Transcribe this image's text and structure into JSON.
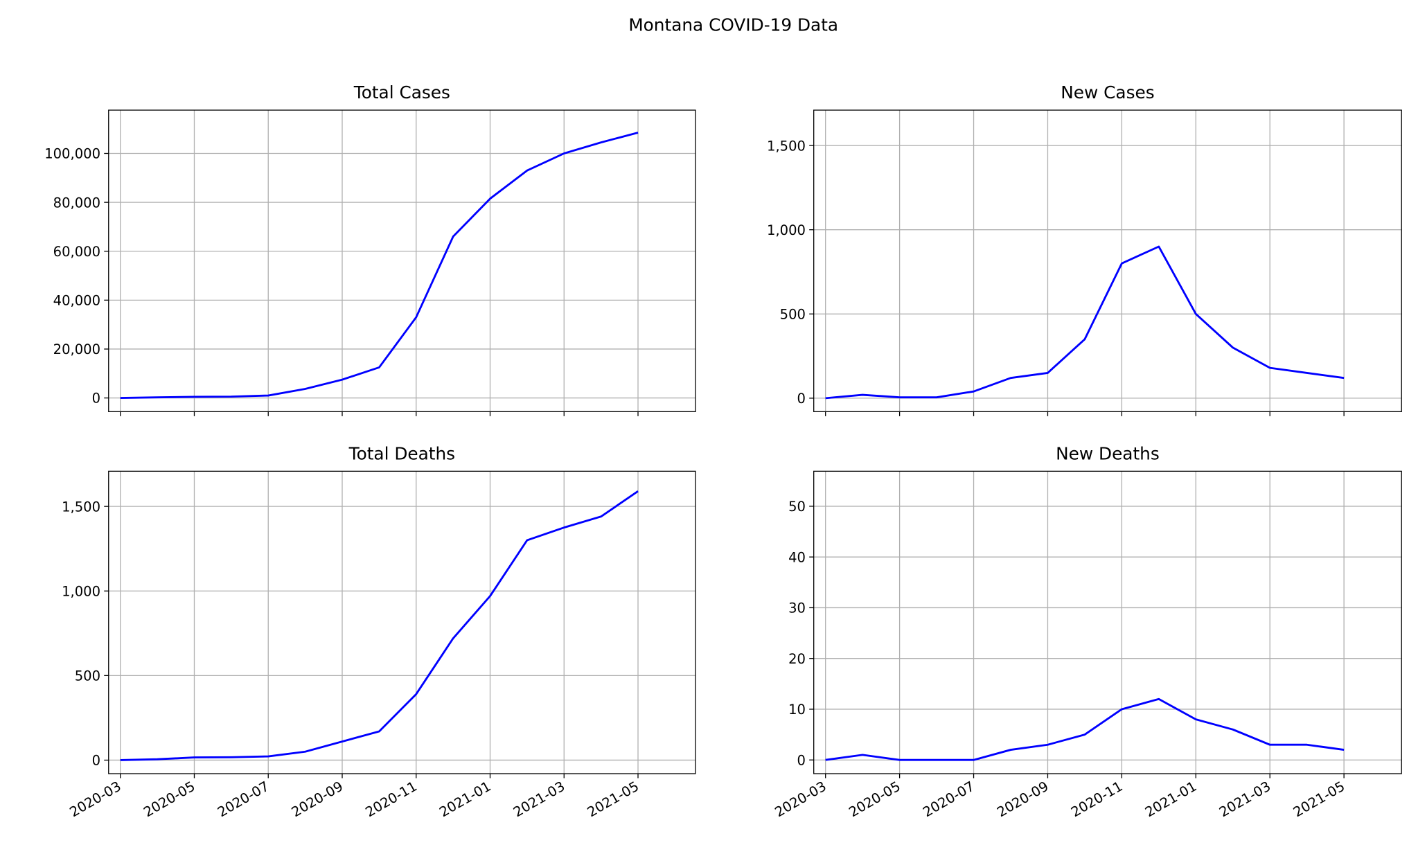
{
  "title": "Montana COVID-19 Data",
  "chart_data": [
    {
      "type": "line",
      "title": "Total Cases",
      "grid": true,
      "show_xtick_labels": false,
      "x": [
        "2020-03",
        "2020-04",
        "2020-05",
        "2020-06",
        "2020-07",
        "2020-08",
        "2020-09",
        "2020-10",
        "2020-11",
        "2020-12",
        "2021-01",
        "2021-02",
        "2021-03",
        "2021-04",
        "2021-05"
      ],
      "series": [
        {
          "name": "Total Cases",
          "color": "#0000ff",
          "values": [
            0,
            250,
            450,
            550,
            1000,
            3700,
            7500,
            12500,
            33000,
            66000,
            81500,
            93000,
            100000,
            104500,
            108500
          ]
        }
      ],
      "xticks": [
        "2020-03",
        "2020-05",
        "2020-07",
        "2020-09",
        "2020-11",
        "2021-01",
        "2021-03",
        "2021-05"
      ],
      "ylim": [
        -5600,
        117700
      ],
      "yticks": [
        0,
        {
          "value": 20000,
          "label": "20,000"
        },
        {
          "value": 40000,
          "label": "40,000"
        },
        {
          "value": 60000,
          "label": "60,000"
        },
        {
          "value": 80000,
          "label": "80,000"
        },
        {
          "value": 100000,
          "label": "100,000"
        }
      ]
    },
    {
      "type": "line",
      "title": "New Cases",
      "grid": true,
      "show_xtick_labels": false,
      "x": [
        "2020-03",
        "2020-04",
        "2020-05",
        "2020-06",
        "2020-07",
        "2020-08",
        "2020-09",
        "2020-10",
        "2020-11",
        "2020-12",
        "2021-01",
        "2021-02",
        "2021-03",
        "2021-04",
        "2021-05"
      ],
      "series": [
        {
          "name": "New Cases",
          "color": "#0000ff",
          "values": [
            0,
            20,
            5,
            5,
            40,
            120,
            150,
            350,
            800,
            900,
            500,
            300,
            180,
            150,
            120
          ]
        }
      ],
      "xticks": [
        "2020-03",
        "2020-05",
        "2020-07",
        "2020-09",
        "2020-11",
        "2021-01",
        "2021-03",
        "2021-05"
      ],
      "ylim": [
        -80,
        1710
      ],
      "yticks": [
        0,
        500,
        {
          "value": 1000,
          "label": "1,000"
        },
        {
          "value": 1500,
          "label": "1,500"
        }
      ]
    },
    {
      "type": "line",
      "title": "Total Deaths",
      "grid": true,
      "show_xtick_labels": true,
      "x": [
        "2020-03",
        "2020-04",
        "2020-05",
        "2020-06",
        "2020-07",
        "2020-08",
        "2020-09",
        "2020-10",
        "2020-11",
        "2020-12",
        "2021-01",
        "2021-02",
        "2021-03",
        "2021-04",
        "2021-05"
      ],
      "series": [
        {
          "name": "Total Deaths",
          "color": "#0000ff",
          "values": [
            0,
            5,
            16,
            17,
            22,
            50,
            110,
            170,
            390,
            720,
            970,
            1300,
            1375,
            1440,
            1590
          ]
        }
      ],
      "xticks": [
        "2020-03",
        "2020-05",
        "2020-07",
        "2020-09",
        "2020-11",
        "2021-01",
        "2021-03",
        "2021-05"
      ],
      "ylim": [
        -80,
        1708
      ],
      "yticks": [
        0,
        500,
        {
          "value": 1000,
          "label": "1,000"
        },
        {
          "value": 1500,
          "label": "1,500"
        }
      ]
    },
    {
      "type": "line",
      "title": "New Deaths",
      "grid": true,
      "show_xtick_labels": true,
      "x": [
        "2020-03",
        "2020-04",
        "2020-05",
        "2020-06",
        "2020-07",
        "2020-08",
        "2020-09",
        "2020-10",
        "2020-11",
        "2020-12",
        "2021-01",
        "2021-02",
        "2021-03",
        "2021-04",
        "2021-05"
      ],
      "series": [
        {
          "name": "New Deaths",
          "color": "#0000ff",
          "values": [
            0,
            1,
            0,
            0,
            0,
            2,
            3,
            5,
            10,
            12,
            8,
            6,
            3,
            3,
            2
          ]
        }
      ],
      "xticks": [
        "2020-03",
        "2020-05",
        "2020-07",
        "2020-09",
        "2020-11",
        "2021-01",
        "2021-03",
        "2021-05"
      ],
      "ylim": [
        -2.7,
        56.9
      ],
      "yticks": [
        0,
        10,
        20,
        30,
        40,
        50
      ]
    }
  ]
}
